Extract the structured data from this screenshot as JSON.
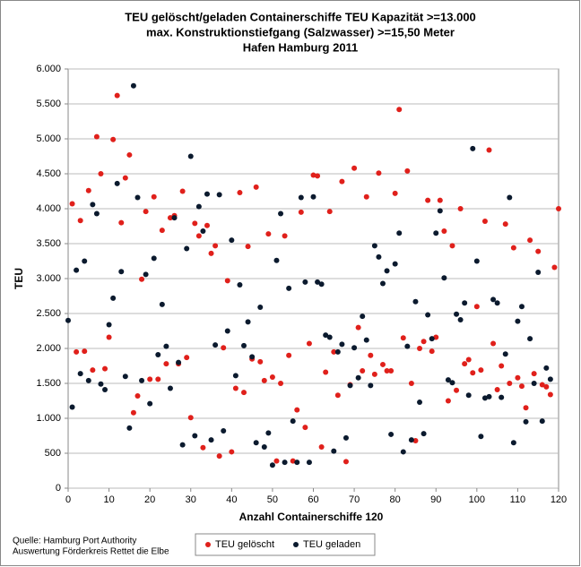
{
  "chart_data": {
    "type": "scatter",
    "title": [
      "TEU gelöscht/geladen Containerschiffe TEU Kapazität >=13.000",
      "max. Konstruktionstiefgang (Salzwasser) >=15,50 Meter",
      "Hafen Hamburg 2011"
    ],
    "xlabel": "Anzahl Containerschiffe 120",
    "ylabel": "TEU",
    "source": [
      "Quelle: Hamburg Port Authority",
      "Auswertung Förderkreis Rettet die Elbe"
    ],
    "xlim": [
      0,
      120
    ],
    "xticks": [
      0,
      10,
      20,
      30,
      40,
      50,
      60,
      70,
      80,
      90,
      100,
      110,
      120
    ],
    "ylim": [
      0,
      6000
    ],
    "yticks": [
      0,
      500,
      {
        "value": 1000,
        "label": "1.000"
      },
      {
        "value": 1500,
        "label": "1.500"
      },
      {
        "value": 2000,
        "label": "2.000"
      },
      {
        "value": 2500,
        "label": "2.500"
      },
      {
        "value": 3000,
        "label": "3.000"
      },
      {
        "value": 3500,
        "label": "3.500"
      },
      {
        "value": 4000,
        "label": "4.000"
      },
      {
        "value": 4500,
        "label": "4.500"
      },
      {
        "value": 5000,
        "label": "5.000"
      },
      {
        "value": 5500,
        "label": "5.500"
      },
      {
        "value": 6000,
        "label": "6.000"
      }
    ],
    "grid": true,
    "legend": "bottom",
    "series": [
      {
        "name": "TEU gelöscht",
        "color": "#e0201b",
        "x": [
          1,
          2,
          3,
          4,
          5,
          6,
          7,
          8,
          9,
          10,
          11,
          12,
          13,
          14,
          15,
          16,
          17,
          18,
          19,
          20,
          21,
          22,
          23,
          24,
          25,
          26,
          27,
          28,
          29,
          30,
          31,
          32,
          33,
          34,
          35,
          36,
          37,
          38,
          39,
          40,
          41,
          42,
          43,
          44,
          45,
          46,
          47,
          48,
          49,
          50,
          51,
          52,
          53,
          54,
          55,
          56,
          57,
          58,
          59,
          60,
          61,
          62,
          63,
          64,
          65,
          66,
          67,
          68,
          69,
          70,
          71,
          72,
          73,
          74,
          75,
          76,
          77,
          78,
          79,
          80,
          81,
          82,
          83,
          84,
          85,
          86,
          87,
          88,
          89,
          90,
          91,
          92,
          93,
          94,
          95,
          96,
          97,
          98,
          99,
          100,
          101,
          102,
          103,
          104,
          105,
          106,
          107,
          108,
          109,
          110,
          111,
          112,
          113,
          114,
          115,
          116,
          117,
          118,
          119,
          120
        ],
        "values": [
          4070,
          1950,
          3830,
          1960,
          4260,
          1690,
          5030,
          4500,
          1710,
          2160,
          4990,
          5620,
          3800,
          4440,
          4770,
          1080,
          1320,
          2990,
          3960,
          1560,
          4170,
          1560,
          3690,
          1780,
          3870,
          3900,
          1780,
          4250,
          1870,
          1010,
          3790,
          3610,
          580,
          3760,
          3360,
          3470,
          460,
          2010,
          2970,
          520,
          1430,
          4230,
          1370,
          3460,
          1850,
          4310,
          1810,
          1540,
          3640,
          1590,
          390,
          1500,
          3610,
          1900,
          390,
          1120,
          3950,
          870,
          2070,
          4480,
          4470,
          590,
          1660,
          3960,
          1950,
          1330,
          4390,
          380,
          1480,
          4580,
          2300,
          1680,
          4170,
          1900,
          1630,
          4510,
          1770,
          1680,
          1680,
          4220,
          5420,
          2150,
          4540,
          1500,
          680,
          2000,
          2100,
          4120,
          1960,
          2160,
          4120,
          3680,
          1250,
          3470,
          1400,
          4000,
          1780,
          1840,
          1650,
          2600,
          1690,
          3820,
          4840,
          2070,
          1410,
          1750,
          3780,
          1500,
          3440,
          1580,
          1460,
          1150,
          3550,
          1640,
          3390,
          1480,
          1450,
          1340,
          3160,
          4000
        ]
      },
      {
        "name": "TEU geladen",
        "color": "#0b1a2e",
        "x": [
          0,
          1,
          2,
          3,
          4,
          5,
          6,
          7,
          8,
          9,
          10,
          11,
          12,
          13,
          14,
          15,
          16,
          17,
          18,
          19,
          20,
          21,
          22,
          23,
          24,
          25,
          26,
          27,
          28,
          29,
          30,
          31,
          32,
          33,
          34,
          35,
          36,
          37,
          38,
          39,
          40,
          41,
          42,
          43,
          44,
          45,
          46,
          47,
          48,
          49,
          50,
          51,
          52,
          53,
          54,
          55,
          56,
          57,
          58,
          59,
          60,
          61,
          62,
          63,
          64,
          65,
          66,
          67,
          68,
          69,
          70,
          71,
          72,
          73,
          74,
          75,
          76,
          77,
          78,
          79,
          80,
          81,
          82,
          83,
          84,
          85,
          86,
          87,
          88,
          89,
          90,
          91,
          92,
          93,
          94,
          95,
          96,
          97,
          98,
          99,
          100,
          101,
          102,
          103,
          104,
          105,
          106,
          107,
          108,
          109,
          110,
          111,
          112,
          113,
          114,
          115,
          116,
          117,
          118
        ],
        "values": [
          2400,
          1160,
          3120,
          1640,
          3250,
          1540,
          4060,
          3930,
          1490,
          1410,
          2340,
          2720,
          4360,
          3100,
          1600,
          860,
          5760,
          4160,
          1540,
          3060,
          1210,
          3290,
          1910,
          2630,
          2030,
          1430,
          3870,
          1800,
          620,
          3430,
          4750,
          750,
          4030,
          3680,
          4210,
          690,
          2050,
          4200,
          820,
          2250,
          3550,
          1610,
          2910,
          2040,
          2380,
          1880,
          650,
          2590,
          590,
          790,
          330,
          3260,
          3930,
          370,
          2860,
          960,
          370,
          4160,
          2950,
          370,
          4170,
          2950,
          2920,
          2190,
          2160,
          530,
          1950,
          2060,
          720,
          1470,
          2010,
          1580,
          2460,
          2120,
          1470,
          3470,
          3310,
          2930,
          3110,
          770,
          3210,
          3650,
          520,
          2030,
          690,
          2670,
          1230,
          780,
          2480,
          2140,
          3650,
          3970,
          3010,
          1550,
          1510,
          2490,
          2410,
          2650,
          1330,
          4860,
          3250,
          740,
          1290,
          1310,
          2700,
          2650,
          1300,
          1920,
          4160,
          650,
          2390,
          2600,
          950,
          2140,
          1500,
          3090,
          960,
          1720,
          1560
        ]
      }
    ]
  }
}
